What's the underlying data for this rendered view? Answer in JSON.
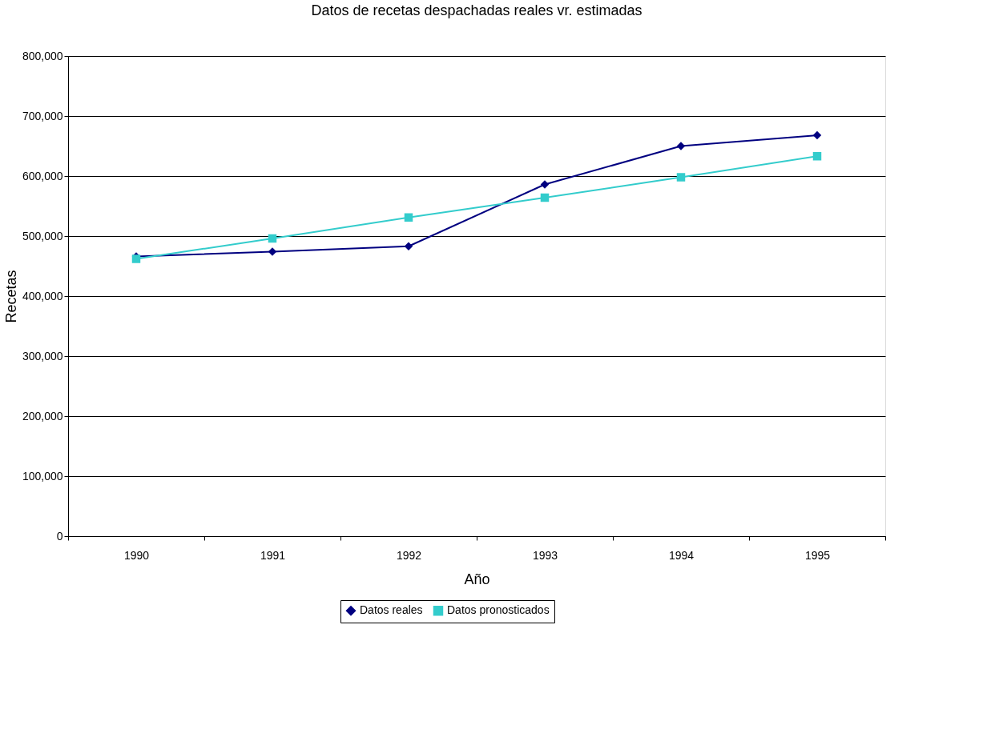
{
  "chart_data": {
    "type": "line",
    "title": "Datos de recetas despachadas reales vr. estimadas",
    "xlabel": "Año",
    "ylabel": "Recetas",
    "categories": [
      "1990",
      "1991",
      "1992",
      "1993",
      "1994",
      "1995"
    ],
    "series": [
      {
        "name": "Datos reales",
        "color": "#000080",
        "marker": "diamond",
        "values": [
          466000,
          474000,
          483000,
          586000,
          650000,
          668000
        ]
      },
      {
        "name": "Datos pronosticados",
        "color": "#33cccc",
        "marker": "square",
        "values": [
          462000,
          496000,
          531000,
          564000,
          598000,
          633000
        ]
      }
    ],
    "ylim": [
      0,
      800000
    ],
    "yticks": [
      0,
      {
        "value": 100000,
        "label": "100,000"
      },
      {
        "value": 200000,
        "label": "200,000"
      },
      {
        "value": 300000,
        "label": "300,000"
      },
      {
        "value": 400000,
        "label": "400,000"
      },
      {
        "value": 500000,
        "label": "500,000"
      },
      {
        "value": 600000,
        "label": "600,000"
      },
      {
        "value": 700000,
        "label": "700,000"
      },
      {
        "value": 800000,
        "label": "800,000"
      }
    ],
    "grid": "y",
    "legend": "bottom",
    "line_style": "solid"
  }
}
